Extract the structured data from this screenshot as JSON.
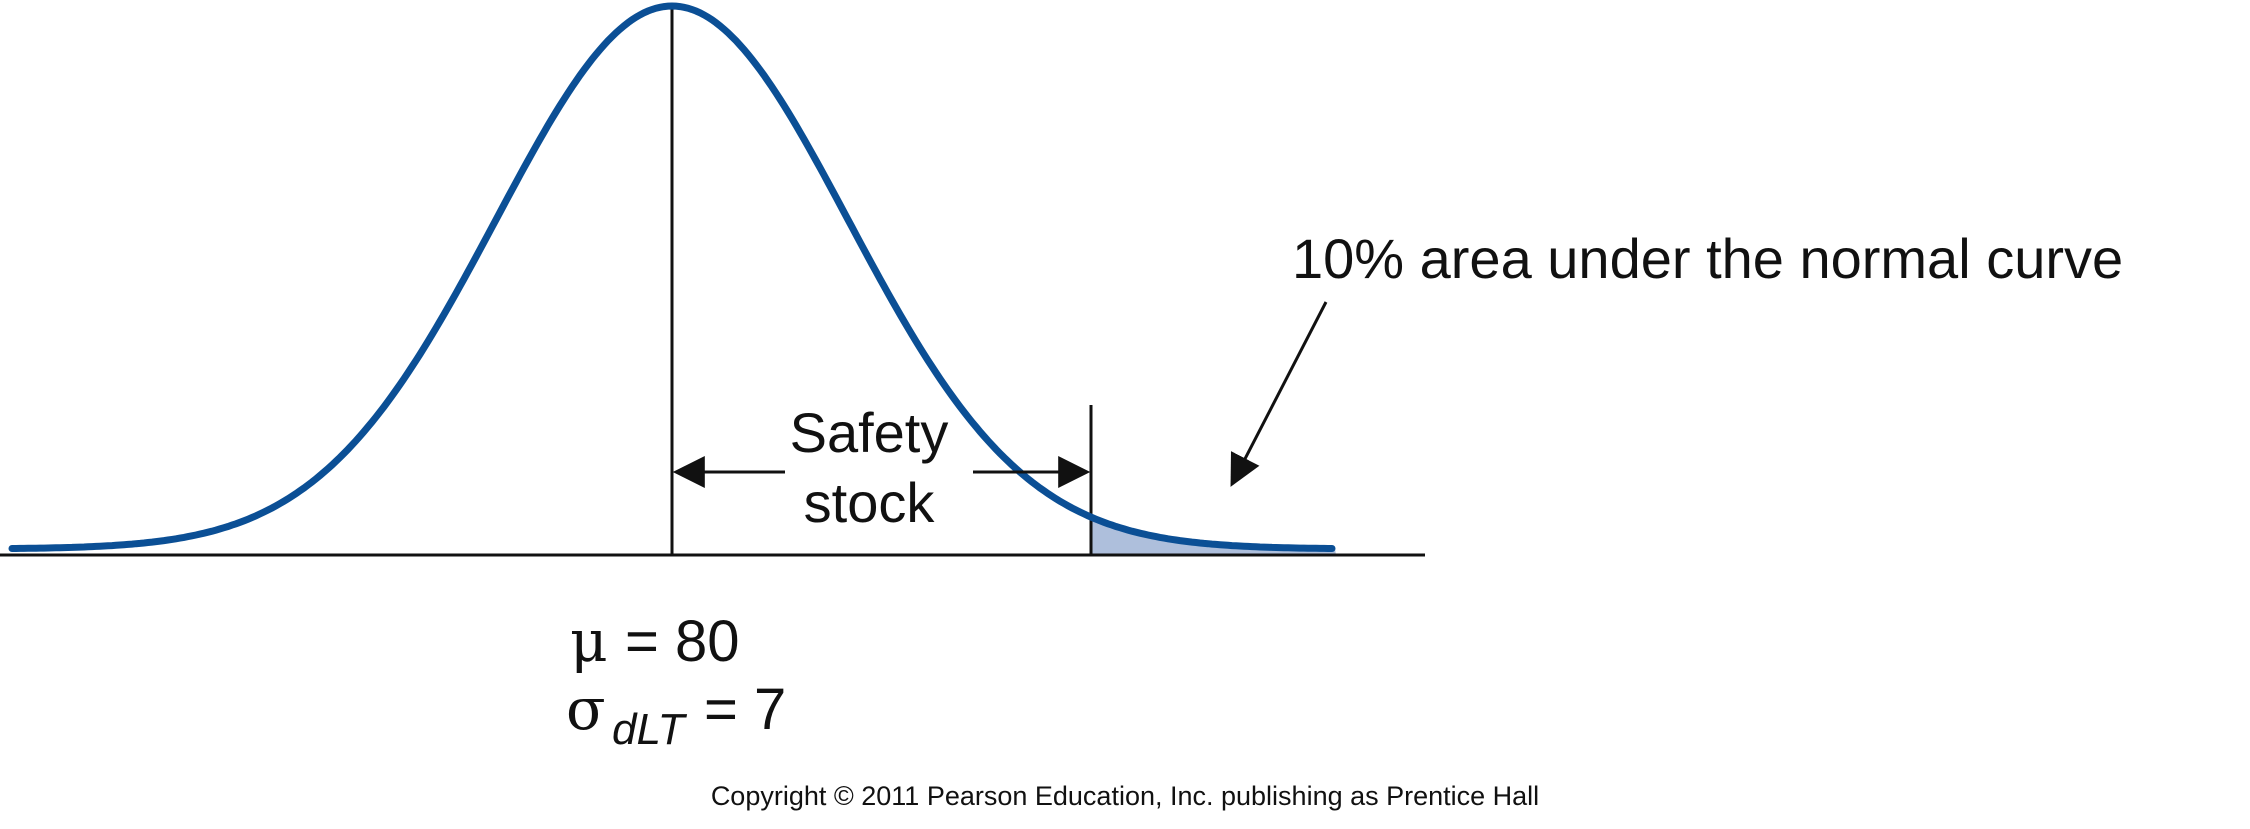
{
  "colors": {
    "curve": "#0b4f95",
    "shaded_area": "#aebfdc",
    "line": "#111111",
    "text": "#111111"
  },
  "diagram": {
    "tail_label": "10% area under the normal curve",
    "safety_stock_label_line1": "Safety",
    "safety_stock_label_line2": "stock",
    "mean_symbol": "μ",
    "mean_value_text": "= 80",
    "sigma_symbol": "σ",
    "sigma_subscript": "dLT",
    "sigma_value_text": "= 7"
  },
  "footer": {
    "copyright": "Copyright © 2011 Pearson Education, Inc. publishing as Prentice Hall"
  }
}
